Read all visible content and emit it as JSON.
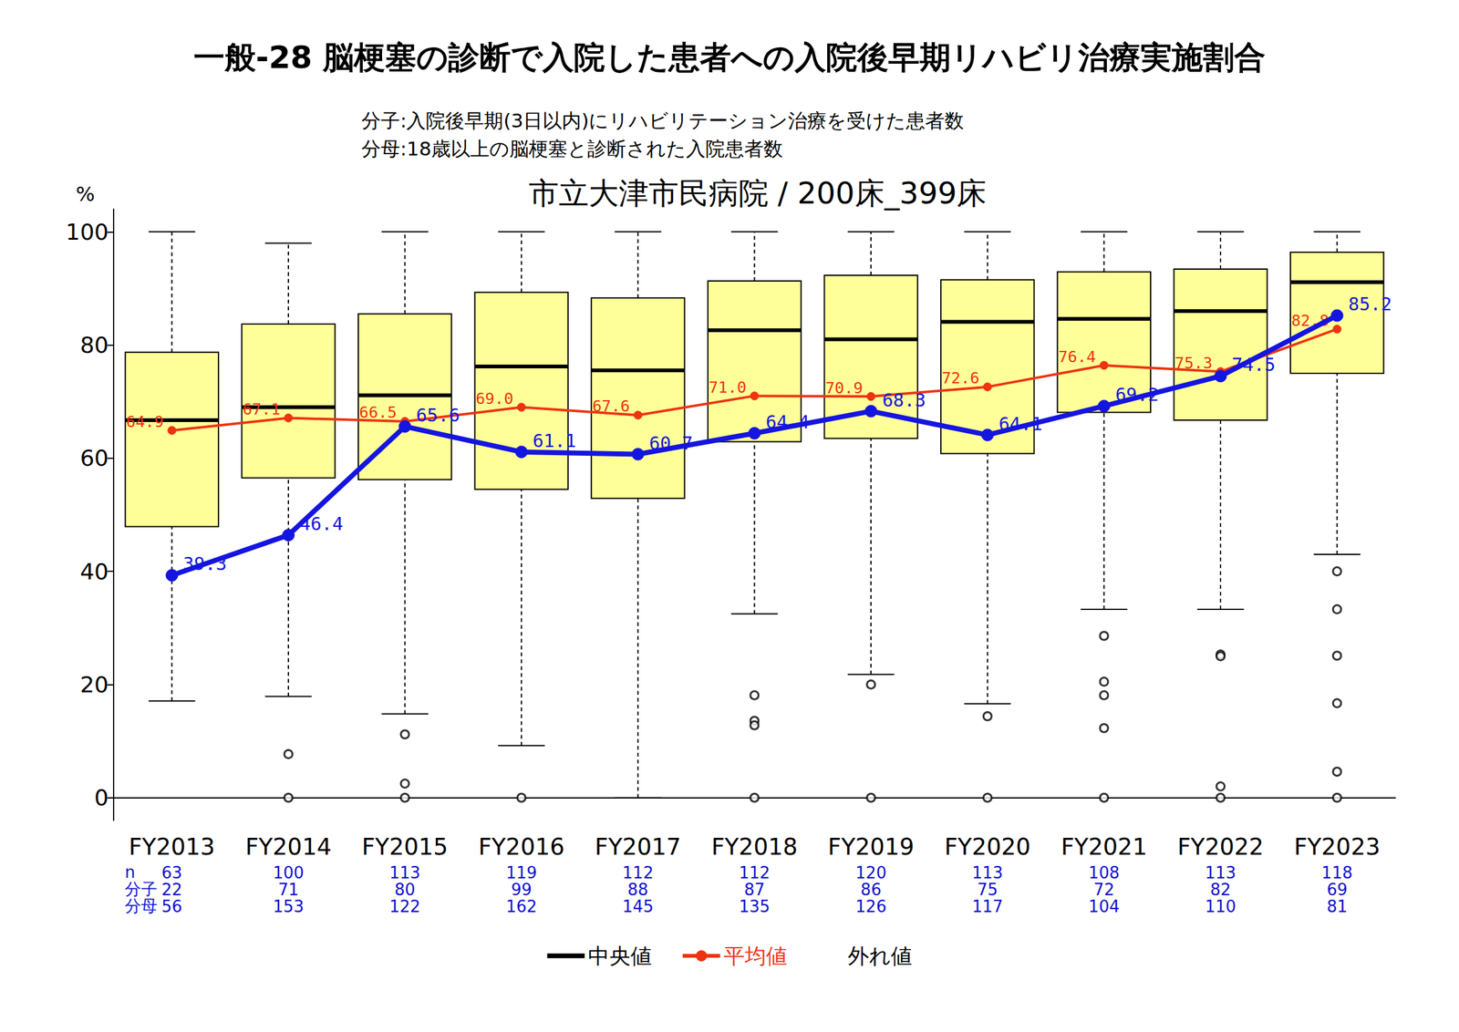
{
  "chart_data": {
    "type": "boxplot",
    "title": "一般-28 脳梗塞の診断で入院した患者への入院後早期リハビリ治療実施割合",
    "subtitle": [
      "分子:入院後早期(3日以内)にリハビリテーション治療を受けた患者数",
      "分母:18歳以上の脳梗塞と診断された入院患者数"
    ],
    "chart_title": "市立大津市民病院 / 200床_399床",
    "y_label": "%",
    "categories": [
      "FY2013",
      "FY2014",
      "FY2015",
      "FY2016",
      "FY2017",
      "FY2018",
      "FY2019",
      "FY2020",
      "FY2021",
      "FY2022",
      "FY2023"
    ],
    "ylim": [
      -4,
      104
    ],
    "yticks": [
      0,
      20,
      40,
      60,
      80,
      100
    ],
    "grid": false,
    "legend": "bottom",
    "series": [
      {
        "name": "中央値",
        "type": "boxplot",
        "color": "#ffff99",
        "values": [
          [
            17.1,
            47.9,
            66.7,
            78.7,
            100
          ],
          [
            17.9,
            56.5,
            69.0,
            83.7,
            98.0
          ],
          [
            14.8,
            56.2,
            71.1,
            85.5,
            100
          ],
          [
            9.2,
            54.5,
            76.2,
            89.3,
            100
          ],
          [
            0,
            52.9,
            75.5,
            88.3,
            100
          ],
          [
            32.5,
            62.9,
            82.6,
            91.3,
            100
          ],
          [
            21.8,
            63.5,
            81.0,
            92.3,
            100
          ],
          [
            16.6,
            60.8,
            84.1,
            91.5,
            100
          ],
          [
            33.3,
            68.1,
            84.6,
            92.9,
            100
          ],
          [
            33.3,
            66.7,
            86.0,
            93.4,
            100
          ],
          [
            43.0,
            75.0,
            91.1,
            96.4,
            100
          ]
        ]
      },
      {
        "name": "平均値",
        "type": "line",
        "color": "#ee3311",
        "marker": "circle",
        "data_labels": true,
        "values": [
          64.9,
          67.1,
          66.5,
          69.0,
          67.6,
          71.0,
          70.9,
          72.6,
          76.4,
          75.3,
          82.8
        ],
        "value_labels": [
          "64.9",
          "67.1",
          "66.5",
          "69.0",
          "67.6",
          "71.0",
          "70.9",
          "72.6",
          "76.4",
          "75.3",
          "82.8"
        ]
      },
      {
        "type": "line",
        "color": "#1515e0",
        "marker": "circle",
        "data_labels": true,
        "values": [
          39.3,
          46.4,
          65.6,
          61.1,
          60.7,
          64.4,
          68.3,
          64.1,
          69.2,
          74.5,
          85.2
        ]
      },
      {
        "name": "外れ値",
        "type": "scatter",
        "color": "#000000",
        "marker": "circle",
        "values": [
          [],
          [
            7.7,
            0
          ],
          [
            11.2,
            2.5,
            0
          ],
          [
            0
          ],
          [],
          [
            18.1,
            13.6,
            12.8,
            0
          ],
          [
            20.0,
            0
          ],
          [
            14.4,
            0
          ],
          [
            28.6,
            20.5,
            18.1,
            12.3,
            0
          ],
          [
            25.3,
            25.0,
            2.0,
            0
          ],
          [
            40.0,
            33.3,
            25.1,
            16.7,
            4.6,
            0
          ]
        ]
      }
    ],
    "table": [
      {
        "label": "n",
        "values": [
          63,
          100,
          113,
          119,
          112,
          112,
          120,
          113,
          108,
          113,
          118
        ]
      },
      {
        "label": "分子",
        "values": [
          22,
          71,
          80,
          99,
          88,
          87,
          86,
          75,
          72,
          82,
          69
        ]
      },
      {
        "label": "分母",
        "values": [
          56,
          153,
          122,
          162,
          145,
          135,
          126,
          117,
          104,
          110,
          81
        ]
      }
    ]
  }
}
